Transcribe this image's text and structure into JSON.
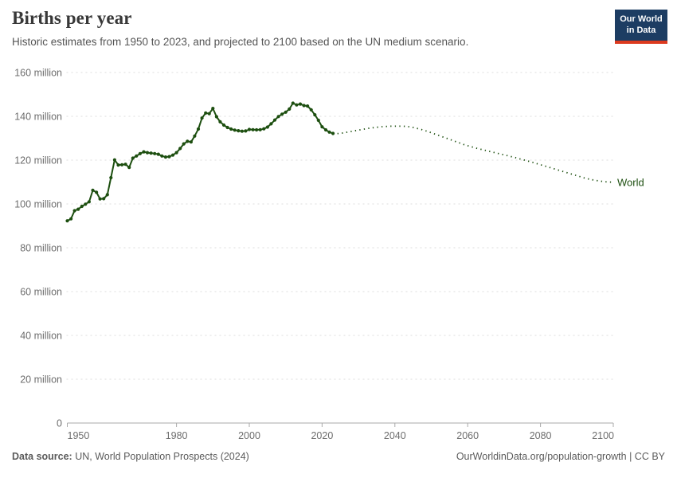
{
  "header": {
    "title": "Births per year",
    "subtitle": "Historic estimates from 1950 to 2023, and projected to 2100 based on the UN medium scenario.",
    "logo": {
      "line1": "Our World",
      "line2": "in Data"
    }
  },
  "footer": {
    "source_label": "Data source:",
    "source_text": " UN, World Population Prospects (2024)",
    "right_text": "OurWorldinData.org/population-growth | CC BY"
  },
  "colors": {
    "line_green": "#1d4f10",
    "logo_navy": "#1d3d63",
    "logo_red": "#dc3a1f",
    "grid_gray": "#dcdcdc",
    "axis_gray": "#a9a9a9",
    "tick_text": "#6d6d6d"
  },
  "chart_data": {
    "type": "line",
    "title": "Births per year",
    "xlabel": "",
    "ylabel": "",
    "unit": "births per year (millions)",
    "xlim": [
      1950,
      2100
    ],
    "ylim": [
      0,
      160
    ],
    "grid": "horizontal-dashed",
    "legend_position": "end-of-line",
    "series_label": "World",
    "yticks": [
      {
        "value": 160,
        "label": "160 million"
      },
      {
        "value": 140,
        "label": "140 million"
      },
      {
        "value": 120,
        "label": "120 million"
      },
      {
        "value": 100,
        "label": "100 million"
      },
      {
        "value": 80,
        "label": "80 million"
      },
      {
        "value": 60,
        "label": "60 million"
      },
      {
        "value": 40,
        "label": "40 million"
      },
      {
        "value": 20,
        "label": "20 million"
      },
      {
        "value": 0,
        "label": "0"
      }
    ],
    "xticks": [
      1950,
      1980,
      2000,
      2020,
      2040,
      2060,
      2080,
      2100
    ],
    "series": [
      {
        "name": "World — historic estimates",
        "style": "solid",
        "markers": true,
        "points": [
          [
            1950,
            92.3
          ],
          [
            1951,
            93.2
          ],
          [
            1952,
            96.9
          ],
          [
            1953,
            97.6
          ],
          [
            1954,
            98.9
          ],
          [
            1955,
            99.9
          ],
          [
            1956,
            101.0
          ],
          [
            1957,
            106.2
          ],
          [
            1958,
            105.3
          ],
          [
            1959,
            102.3
          ],
          [
            1960,
            102.4
          ],
          [
            1961,
            104.2
          ],
          [
            1962,
            112.0
          ],
          [
            1963,
            120.1
          ],
          [
            1964,
            117.8
          ],
          [
            1965,
            117.9
          ],
          [
            1966,
            118.1
          ],
          [
            1967,
            116.7
          ],
          [
            1968,
            120.9
          ],
          [
            1969,
            121.9
          ],
          [
            1970,
            123.0
          ],
          [
            1971,
            123.8
          ],
          [
            1972,
            123.4
          ],
          [
            1973,
            123.2
          ],
          [
            1974,
            123.0
          ],
          [
            1975,
            122.7
          ],
          [
            1976,
            121.9
          ],
          [
            1977,
            121.4
          ],
          [
            1978,
            121.6
          ],
          [
            1979,
            122.3
          ],
          [
            1980,
            123.4
          ],
          [
            1981,
            125.3
          ],
          [
            1982,
            127.4
          ],
          [
            1983,
            128.6
          ],
          [
            1984,
            128.3
          ],
          [
            1985,
            131.0
          ],
          [
            1986,
            134.2
          ],
          [
            1987,
            139.2
          ],
          [
            1988,
            141.5
          ],
          [
            1989,
            141.2
          ],
          [
            1990,
            143.6
          ],
          [
            1991,
            139.8
          ],
          [
            1992,
            137.5
          ],
          [
            1993,
            136.0
          ],
          [
            1994,
            134.9
          ],
          [
            1995,
            134.2
          ],
          [
            1996,
            133.7
          ],
          [
            1997,
            133.4
          ],
          [
            1998,
            133.2
          ],
          [
            1999,
            133.3
          ],
          [
            2000,
            134.0
          ],
          [
            2001,
            133.9
          ],
          [
            2002,
            133.8
          ],
          [
            2003,
            133.9
          ],
          [
            2004,
            134.3
          ],
          [
            2005,
            135.1
          ],
          [
            2006,
            136.6
          ],
          [
            2007,
            138.3
          ],
          [
            2008,
            139.9
          ],
          [
            2009,
            141.0
          ],
          [
            2010,
            141.9
          ],
          [
            2011,
            143.3
          ],
          [
            2012,
            146.0
          ],
          [
            2013,
            145.2
          ],
          [
            2014,
            145.6
          ],
          [
            2015,
            144.9
          ],
          [
            2016,
            144.7
          ],
          [
            2017,
            143.0
          ],
          [
            2018,
            140.7
          ],
          [
            2019,
            138.2
          ],
          [
            2020,
            135.2
          ],
          [
            2021,
            133.8
          ],
          [
            2022,
            132.8
          ],
          [
            2023,
            132.2
          ]
        ]
      },
      {
        "name": "World — UN medium scenario projection",
        "style": "dotted",
        "markers": false,
        "points": [
          [
            2023,
            132.2
          ],
          [
            2024,
            132.1
          ],
          [
            2025,
            132.2
          ],
          [
            2026,
            132.5
          ],
          [
            2027,
            132.8
          ],
          [
            2028,
            133.1
          ],
          [
            2029,
            133.4
          ],
          [
            2030,
            133.7
          ],
          [
            2031,
            134.0
          ],
          [
            2032,
            134.3
          ],
          [
            2033,
            134.6
          ],
          [
            2034,
            134.8
          ],
          [
            2035,
            135.0
          ],
          [
            2036,
            135.2
          ],
          [
            2037,
            135.3
          ],
          [
            2038,
            135.4
          ],
          [
            2039,
            135.5
          ],
          [
            2040,
            135.5
          ],
          [
            2041,
            135.5
          ],
          [
            2042,
            135.5
          ],
          [
            2043,
            135.4
          ],
          [
            2044,
            135.2
          ],
          [
            2045,
            134.9
          ],
          [
            2046,
            134.5
          ],
          [
            2047,
            134.1
          ],
          [
            2048,
            133.6
          ],
          [
            2049,
            133.1
          ],
          [
            2050,
            132.5
          ],
          [
            2051,
            131.9
          ],
          [
            2052,
            131.3
          ],
          [
            2053,
            130.7
          ],
          [
            2054,
            130.1
          ],
          [
            2055,
            129.5
          ],
          [
            2056,
            128.9
          ],
          [
            2057,
            128.3
          ],
          [
            2058,
            127.7
          ],
          [
            2059,
            127.1
          ],
          [
            2060,
            126.6
          ],
          [
            2061,
            126.1
          ],
          [
            2062,
            125.6
          ],
          [
            2063,
            125.2
          ],
          [
            2064,
            124.8
          ],
          [
            2065,
            124.4
          ],
          [
            2066,
            124.0
          ],
          [
            2067,
            123.6
          ],
          [
            2068,
            123.2
          ],
          [
            2069,
            122.8
          ],
          [
            2070,
            122.4
          ],
          [
            2071,
            122.0
          ],
          [
            2072,
            121.6
          ],
          [
            2073,
            121.2
          ],
          [
            2074,
            120.7
          ],
          [
            2075,
            120.3
          ],
          [
            2076,
            119.8
          ],
          [
            2077,
            119.4
          ],
          [
            2078,
            118.9
          ],
          [
            2079,
            118.4
          ],
          [
            2080,
            117.9
          ],
          [
            2081,
            117.4
          ],
          [
            2082,
            116.9
          ],
          [
            2083,
            116.4
          ],
          [
            2084,
            115.9
          ],
          [
            2085,
            115.4
          ],
          [
            2086,
            114.9
          ],
          [
            2087,
            114.4
          ],
          [
            2088,
            113.9
          ],
          [
            2089,
            113.4
          ],
          [
            2090,
            112.9
          ],
          [
            2091,
            112.4
          ],
          [
            2092,
            111.9
          ],
          [
            2093,
            111.5
          ],
          [
            2094,
            111.1
          ],
          [
            2095,
            110.8
          ],
          [
            2096,
            110.5
          ],
          [
            2097,
            110.3
          ],
          [
            2098,
            110.1
          ],
          [
            2099,
            110.0
          ],
          [
            2100,
            109.9
          ]
        ]
      }
    ]
  }
}
